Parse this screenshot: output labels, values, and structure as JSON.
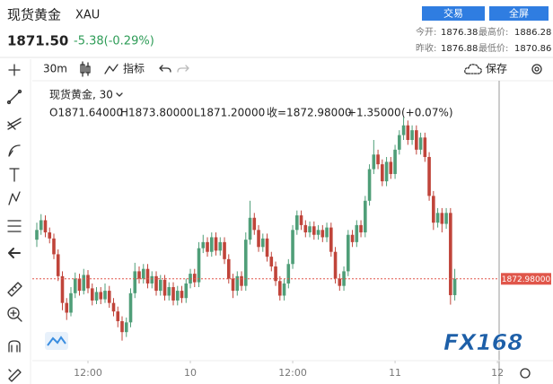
{
  "header": {
    "title": "现货黄金",
    "symbol": "XAU",
    "price": "1871.50",
    "change": "-5.38(-0.29%)",
    "buttons": [
      "交易",
      "全屏"
    ],
    "stats": [
      [
        "今开:",
        "1876.38",
        "最高价:",
        "1886.28"
      ],
      [
        "昨收:",
        "1876.88",
        "最低价:",
        "1870.86"
      ]
    ]
  },
  "toolbar": {
    "interval": "30m",
    "indicators": "指标",
    "save": "保存"
  },
  "logo": "FX168",
  "chart_data": {
    "type": "candlestick",
    "legend": {
      "name": "现货黄金, 30",
      "open": "O1871.64000",
      "high": "H1873.80000",
      "low": "L1871.20000",
      "close": "收=1872.98000",
      "change": "+1.35000",
      "change_pct": "(+0.07%)"
    },
    "up_color": "#4f9e78",
    "down_color": "#c0443a",
    "xlim": [
      -1.05,
      108.4
    ],
    "xticks": [
      {
        "value": 12,
        "label": "12:00"
      },
      {
        "value": 36,
        "label": "10"
      },
      {
        "value": 60,
        "label": "12:00"
      },
      {
        "value": 84,
        "label": "11"
      },
      {
        "value": 108,
        "label": "12"
      }
    ],
    "ylim": [
      1866.4,
      1888.9
    ],
    "price_line": {
      "value": 1872.98,
      "label": "1872.98000",
      "color": "#e0564a"
    },
    "open": [
      1876.2,
      1877.0,
      1877.8,
      1876.8,
      1876.3,
      1875.0,
      1873.2,
      1871.0,
      1870.2,
      1871.8,
      1873.0,
      1872.0,
      1873.3,
      1872.2,
      1871.2,
      1871.9,
      1871.3,
      1872.0,
      1871.0,
      1870.3,
      1869.5,
      1868.6,
      1869.4,
      1871.8,
      1873.6,
      1873.0,
      1873.8,
      1872.6,
      1873.2,
      1872.0,
      1872.9,
      1871.6,
      1872.3,
      1871.2,
      1872.0,
      1871.4,
      1872.6,
      1873.4,
      1872.7,
      1875.5,
      1876.0,
      1875.2,
      1876.4,
      1875.3,
      1876.0,
      1874.6,
      1873.0,
      1872.0,
      1873.2,
      1872.4,
      1876.2,
      1878.0,
      1877.0,
      1875.6,
      1876.3,
      1874.8,
      1874.0,
      1872.8,
      1871.6,
      1872.6,
      1874.2,
      1877.0,
      1878.2,
      1877.4,
      1876.8,
      1877.3,
      1876.6,
      1877.0,
      1876.4,
      1877.2,
      1875.2,
      1873.0,
      1872.4,
      1873.6,
      1876.6,
      1876.0,
      1877.4,
      1876.8,
      1879.4,
      1882.0,
      1883.2,
      1882.4,
      1881.0,
      1882.6,
      1881.6,
      1883.6,
      1884.8,
      1885.6,
      1884.4,
      1885.2,
      1883.6,
      1884.6,
      1883.0,
      1879.8,
      1877.6,
      1878.4,
      1877.5,
      1878.4,
      1871.64
    ],
    "high": [
      1877.6,
      1878.3,
      1878.2,
      1877.2,
      1876.7,
      1875.4,
      1873.6,
      1871.4,
      1872.3,
      1873.5,
      1873.4,
      1873.8,
      1873.7,
      1872.6,
      1872.3,
      1872.3,
      1872.6,
      1872.4,
      1871.4,
      1870.7,
      1869.9,
      1869.8,
      1872.2,
      1874.3,
      1874.0,
      1874.2,
      1874.2,
      1873.6,
      1873.6,
      1873.3,
      1873.3,
      1872.7,
      1872.7,
      1872.4,
      1872.4,
      1873.0,
      1873.8,
      1873.8,
      1876.0,
      1876.6,
      1876.4,
      1876.8,
      1876.8,
      1876.4,
      1876.4,
      1875.0,
      1873.4,
      1873.6,
      1873.6,
      1876.8,
      1879.4,
      1878.4,
      1877.4,
      1876.7,
      1876.7,
      1875.2,
      1874.4,
      1873.2,
      1873.0,
      1874.6,
      1877.4,
      1878.6,
      1878.6,
      1877.8,
      1877.7,
      1877.7,
      1877.4,
      1877.4,
      1877.6,
      1877.6,
      1875.6,
      1873.4,
      1874.0,
      1877.0,
      1877.0,
      1877.8,
      1877.8,
      1879.8,
      1882.4,
      1884.4,
      1883.6,
      1882.8,
      1883.0,
      1883.0,
      1884.0,
      1885.2,
      1886.28,
      1886.0,
      1885.6,
      1885.6,
      1885.0,
      1885.0,
      1883.4,
      1880.2,
      1878.8,
      1878.8,
      1878.8,
      1878.8,
      1873.8
    ],
    "low": [
      1875.6,
      1876.6,
      1876.4,
      1875.9,
      1874.6,
      1872.8,
      1870.4,
      1869.6,
      1869.9,
      1871.4,
      1871.6,
      1871.7,
      1871.8,
      1870.8,
      1870.9,
      1870.9,
      1871.0,
      1870.6,
      1869.9,
      1869.0,
      1867.9,
      1868.2,
      1869.0,
      1871.4,
      1872.6,
      1872.6,
      1872.2,
      1872.2,
      1871.6,
      1871.6,
      1871.2,
      1871.2,
      1870.8,
      1870.8,
      1871.0,
      1871.0,
      1872.2,
      1872.3,
      1872.3,
      1875.1,
      1874.8,
      1874.8,
      1874.9,
      1874.9,
      1874.2,
      1872.6,
      1871.4,
      1871.6,
      1872.0,
      1872.0,
      1875.8,
      1876.6,
      1875.2,
      1875.2,
      1874.4,
      1873.6,
      1872.4,
      1871.2,
      1871.2,
      1872.2,
      1873.8,
      1876.6,
      1877.0,
      1876.4,
      1876.4,
      1876.2,
      1876.2,
      1876.0,
      1876.0,
      1874.8,
      1872.6,
      1872.0,
      1872.0,
      1873.2,
      1875.6,
      1875.6,
      1876.4,
      1876.4,
      1879.0,
      1881.6,
      1882.0,
      1880.6,
      1880.6,
      1881.2,
      1881.2,
      1883.2,
      1884.4,
      1884.0,
      1884.0,
      1883.2,
      1883.2,
      1882.6,
      1879.4,
      1877.0,
      1877.2,
      1876.8,
      1877.1,
      1870.86,
      1871.2
    ],
    "close": [
      1877.0,
      1877.8,
      1876.8,
      1876.3,
      1875.0,
      1873.2,
      1871.0,
      1870.2,
      1871.8,
      1873.0,
      1872.0,
      1873.3,
      1872.2,
      1871.2,
      1871.9,
      1871.3,
      1872.0,
      1871.0,
      1870.3,
      1869.5,
      1868.6,
      1869.4,
      1871.8,
      1873.6,
      1873.0,
      1873.8,
      1872.6,
      1873.2,
      1872.0,
      1872.9,
      1871.6,
      1872.3,
      1871.2,
      1872.0,
      1871.4,
      1872.6,
      1873.4,
      1872.7,
      1875.5,
      1876.0,
      1875.2,
      1876.4,
      1875.3,
      1876.0,
      1874.6,
      1873.0,
      1872.0,
      1873.2,
      1872.4,
      1876.2,
      1878.0,
      1877.0,
      1875.6,
      1876.3,
      1874.8,
      1874.0,
      1872.8,
      1871.6,
      1872.6,
      1874.2,
      1877.0,
      1878.2,
      1877.4,
      1876.8,
      1877.3,
      1876.6,
      1877.0,
      1876.4,
      1877.2,
      1875.2,
      1873.0,
      1872.4,
      1873.6,
      1876.6,
      1876.0,
      1877.4,
      1876.8,
      1879.4,
      1882.0,
      1883.2,
      1882.4,
      1881.0,
      1882.6,
      1881.6,
      1883.6,
      1884.8,
      1885.6,
      1884.4,
      1885.2,
      1883.6,
      1884.6,
      1883.0,
      1879.8,
      1877.6,
      1878.4,
      1877.5,
      1878.4,
      1871.64,
      1872.98
    ]
  }
}
